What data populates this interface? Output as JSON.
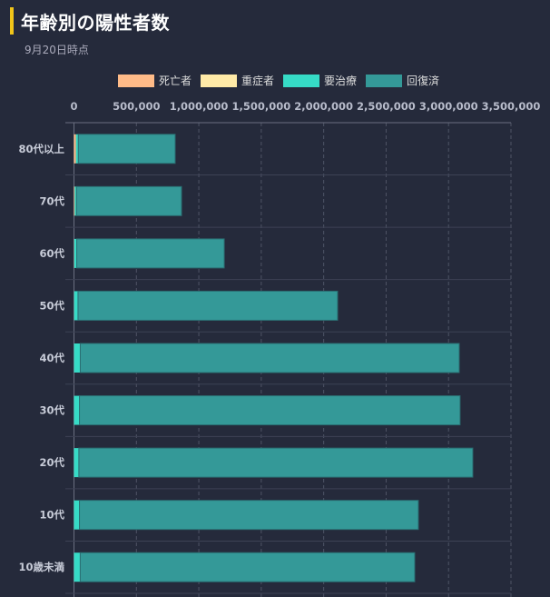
{
  "header": {
    "title": "年齢別の陽性者数",
    "subtitle": "9月20日時点"
  },
  "chart_data": {
    "type": "bar",
    "orientation": "horizontal",
    "stacked": true,
    "title": "年齢別の陽性者数",
    "subtitle": "9月20日時点",
    "categories": [
      "80代以上",
      "70代",
      "60代",
      "50代",
      "40代",
      "30代",
      "20代",
      "10代",
      "10歳未満"
    ],
    "series": [
      {
        "name": "死亡者",
        "color": "#ffbb88",
        "values": [
          16000,
          6000,
          2000,
          1000,
          300,
          100,
          50,
          10,
          5
        ]
      },
      {
        "name": "重症者",
        "color": "#ffeaa7",
        "values": [
          300,
          300,
          300,
          200,
          100,
          50,
          30,
          5,
          5
        ]
      },
      {
        "name": "要治療",
        "color": "#36dbc6",
        "values": [
          18000,
          14000,
          20000,
          31000,
          50000,
          44000,
          39000,
          44000,
          50000
        ]
      },
      {
        "name": "回復済",
        "color": "#349998",
        "values": [
          776000,
          841000,
          1181000,
          2079000,
          3035000,
          3048000,
          3155000,
          2714000,
          2679000
        ]
      }
    ],
    "x_ticks": [
      "0",
      "500,000",
      "1,000,000",
      "1,500,000",
      "2,000,000",
      "2,500,000",
      "3,000,000",
      "3,500,000"
    ],
    "xlim": [
      0,
      3500000
    ],
    "xlabel": "",
    "ylabel": "",
    "grid": true,
    "legend_position": "top-center"
  }
}
